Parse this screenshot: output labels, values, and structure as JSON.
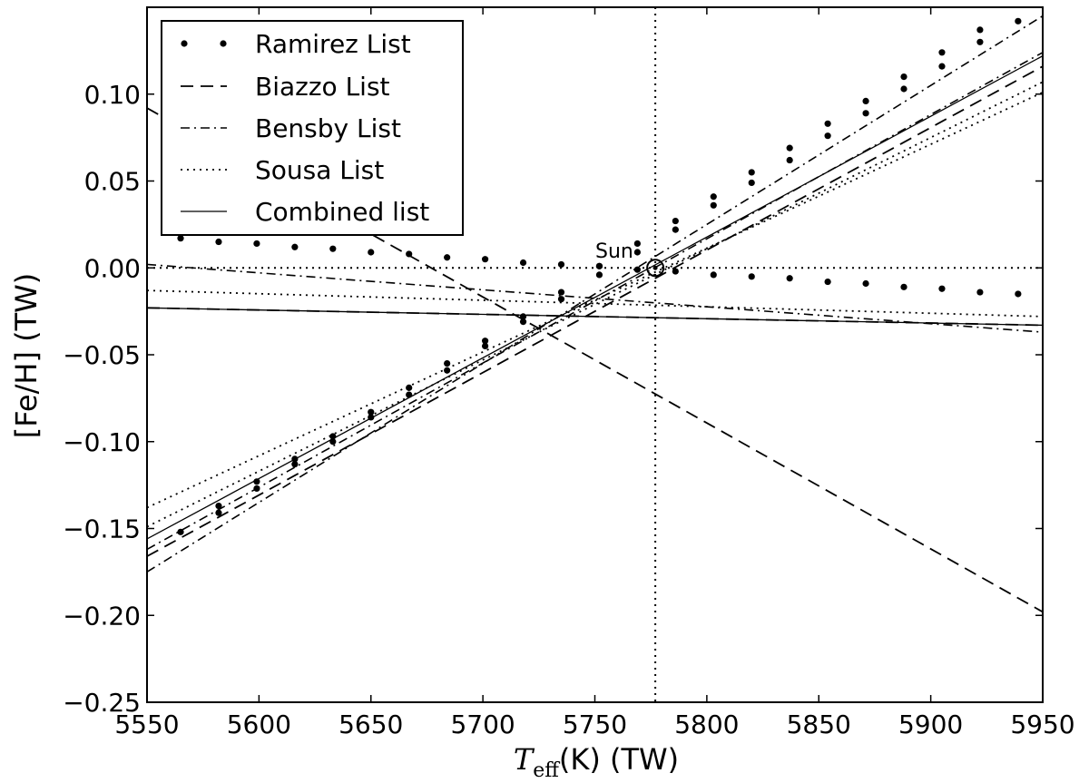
{
  "chart_data": {
    "type": "line",
    "xlabel_main": "T",
    "xlabel_sub": "eff",
    "xlabel_rest": "(K) (TW)",
    "ylabel": "[Fe/H] (TW)",
    "xlim": [
      5550,
      5950
    ],
    "ylim": [
      -0.25,
      0.15
    ],
    "xticks": [
      5550,
      5600,
      5650,
      5700,
      5750,
      5800,
      5850,
      5900,
      5950
    ],
    "xtick_labels": [
      "5550",
      "5600",
      "5650",
      "5700",
      "5750",
      "5800",
      "5850",
      "5900",
      "5950"
    ],
    "yticks": [
      -0.25,
      -0.2,
      -0.15,
      -0.1,
      -0.05,
      0.0,
      0.05,
      0.1
    ],
    "ytick_labels": [
      "−0.25",
      "−0.20",
      "−0.15",
      "−0.10",
      "−0.05",
      "0.00",
      "0.05",
      "0.10"
    ],
    "grid": false,
    "legend_position": "top-left",
    "reference_lines": {
      "x": 5777,
      "y": 0.0,
      "style": "dotted"
    },
    "sun_marker": {
      "x": 5777,
      "y": 0.0,
      "label": "Sun"
    },
    "series": [
      {
        "name": "Ramirez List",
        "style": "points",
        "points": [
          [
            5565,
            -0.152
          ],
          [
            5582,
            -0.137
          ],
          [
            5582,
            -0.141
          ],
          [
            5599,
            -0.123
          ],
          [
            5599,
            -0.127
          ],
          [
            5616,
            -0.11
          ],
          [
            5616,
            -0.113
          ],
          [
            5633,
            -0.097
          ],
          [
            5633,
            -0.1
          ],
          [
            5650,
            -0.083
          ],
          [
            5650,
            -0.086
          ],
          [
            5667,
            -0.069
          ],
          [
            5667,
            -0.073
          ],
          [
            5684,
            -0.055
          ],
          [
            5684,
            -0.059
          ],
          [
            5701,
            -0.042
          ],
          [
            5701,
            -0.045
          ],
          [
            5718,
            -0.028
          ],
          [
            5718,
            -0.031
          ],
          [
            5735,
            -0.014
          ],
          [
            5735,
            -0.018
          ],
          [
            5752,
            0.001
          ],
          [
            5752,
            -0.004
          ],
          [
            5769,
            0.014
          ],
          [
            5769,
            0.009
          ],
          [
            5786,
            0.027
          ],
          [
            5786,
            0.022
          ],
          [
            5803,
            0.041
          ],
          [
            5803,
            0.036
          ],
          [
            5820,
            0.055
          ],
          [
            5820,
            0.049
          ],
          [
            5837,
            0.069
          ],
          [
            5837,
            0.062
          ],
          [
            5854,
            0.083
          ],
          [
            5854,
            0.076
          ],
          [
            5871,
            0.096
          ],
          [
            5871,
            0.089
          ],
          [
            5888,
            0.11
          ],
          [
            5888,
            0.103
          ],
          [
            5905,
            0.124
          ],
          [
            5905,
            0.116
          ],
          [
            5922,
            0.137
          ],
          [
            5922,
            0.13
          ],
          [
            5939,
            0.142
          ],
          [
            5565,
            0.017
          ],
          [
            5582,
            0.015
          ],
          [
            5599,
            0.014
          ],
          [
            5616,
            0.012
          ],
          [
            5633,
            0.011
          ],
          [
            5650,
            0.009
          ],
          [
            5667,
            0.008
          ],
          [
            5684,
            0.006
          ],
          [
            5701,
            0.005
          ],
          [
            5718,
            0.003
          ],
          [
            5735,
            0.002
          ],
          [
            5752,
            0.001
          ],
          [
            5769,
            -0.001
          ],
          [
            5786,
            -0.002
          ],
          [
            5803,
            -0.004
          ],
          [
            5820,
            -0.005
          ],
          [
            5837,
            -0.006
          ],
          [
            5854,
            -0.008
          ],
          [
            5871,
            -0.009
          ],
          [
            5888,
            -0.011
          ],
          [
            5905,
            -0.012
          ],
          [
            5922,
            -0.014
          ],
          [
            5939,
            -0.015
          ]
        ]
      },
      {
        "name": "Biazzo List",
        "style": "dashed",
        "segments": [
          [
            [
              5550,
              -0.166
            ],
            [
              5950,
              0.116
            ]
          ],
          [
            [
              5550,
              0.092
            ],
            [
              5950,
              -0.198
            ]
          ],
          [
            [
              5550,
              -0.023
            ],
            [
              5950,
              -0.033
            ]
          ]
        ]
      },
      {
        "name": "Bensby List",
        "style": "dashdot",
        "segments": [
          [
            [
              5550,
              -0.175
            ],
            [
              5950,
              0.145
            ]
          ],
          [
            [
              5550,
              -0.162
            ],
            [
              5950,
              0.124
            ]
          ],
          [
            [
              5550,
              0.002
            ],
            [
              5950,
              -0.037
            ]
          ]
        ]
      },
      {
        "name": "Sousa List",
        "style": "dotted",
        "segments": [
          [
            [
              5550,
              -0.138
            ],
            [
              5950,
              0.101
            ]
          ],
          [
            [
              5550,
              -0.149
            ],
            [
              5950,
              0.107
            ]
          ],
          [
            [
              5550,
              -0.013
            ],
            [
              5950,
              -0.028
            ]
          ]
        ]
      },
      {
        "name": "Combined list",
        "style": "solid",
        "segments": [
          [
            [
              5550,
              -0.156
            ],
            [
              5950,
              0.122
            ]
          ],
          [
            [
              5550,
              -0.023
            ],
            [
              5950,
              -0.033
            ]
          ]
        ]
      }
    ]
  }
}
